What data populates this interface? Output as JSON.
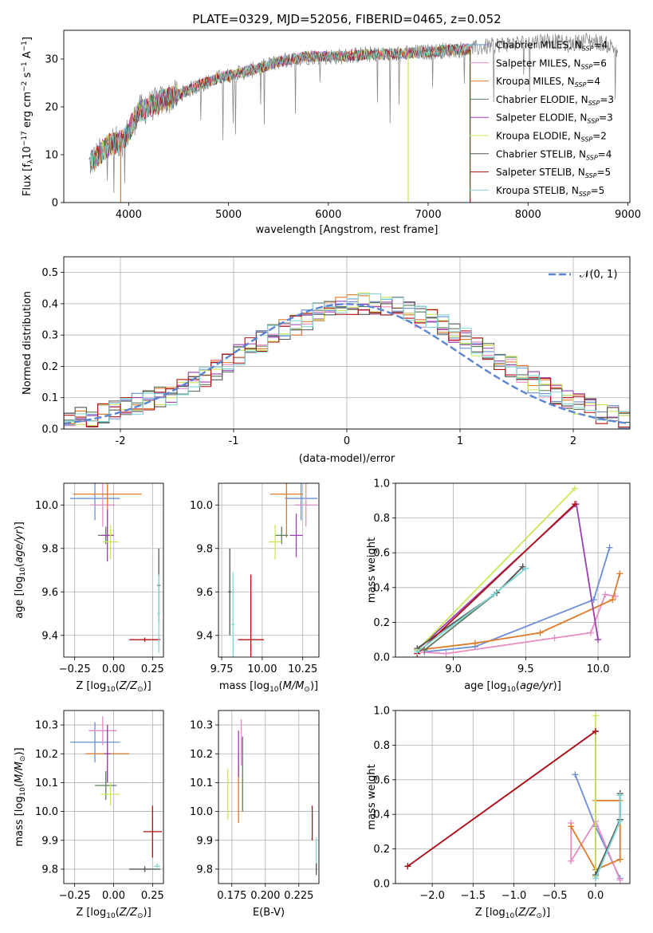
{
  "figure": {
    "title": "PLATE=0329, MJD=52056, FIBERID=0465, z=0.052"
  },
  "colors": {
    "Chabrier MILES": "#6a8fd8",
    "Salpeter MILES": "#e88bc4",
    "Kroupa MILES": "#e07a28",
    "Chabrier ELODIE": "#5e7a5e",
    "Salpeter ELODIE": "#9b3fb5",
    "Kroupa ELODIE": "#c8e85a",
    "Chabrier STELIB": "#555555",
    "Salpeter STELIB": "#b01010",
    "Kroupa STELIB": "#7fd6d6"
  },
  "chart_data": [
    {
      "id": "spectrum",
      "type": "line",
      "title": "PLATE=0329, MJD=52056, FIBERID=0465, z=0.052",
      "xlabel": "wavelength [Angstrom, rest frame]",
      "ylabel": "Flux [f_λ10^-17 erg cm^-2 s^-1 A^-1]",
      "xlim": [
        3350,
        9020
      ],
      "ylim": [
        0,
        36
      ],
      "xticks": [
        4000,
        5000,
        6000,
        7000,
        8000,
        9000
      ],
      "yticks": [
        0,
        10,
        20,
        30
      ],
      "grid": false,
      "legend_position": "top-right",
      "spectrum_trend": {
        "x": [
          3600,
          3800,
          3950,
          4100,
          4300,
          4500,
          4700,
          4900,
          5100,
          5300,
          5500,
          5800,
          6100,
          6400,
          6700,
          7000,
          7300,
          7420
        ],
        "y": [
          8,
          12,
          13,
          19,
          21,
          22.5,
          24.5,
          26,
          27,
          28,
          29.5,
          30.5,
          30.5,
          31,
          31,
          31.5,
          32,
          32
        ]
      },
      "data_only_tail": {
        "x": [
          7420,
          7700,
          8000,
          8200,
          8400,
          8600,
          8800,
          8900
        ],
        "y": [
          32,
          33,
          33.5,
          34,
          33,
          34,
          33,
          32
        ]
      },
      "series": [
        {
          "name": "Chabrier MILES, N_SSP=4",
          "label_main": "Chabrier MILES, N",
          "label_sub": "SSP",
          "label_tail": "=4",
          "color": "Chabrier MILES"
        },
        {
          "name": "Salpeter MILES, N_SSP=6",
          "label_main": "Salpeter MILES, N",
          "label_sub": "SSP",
          "label_tail": "=6",
          "color": "Salpeter MILES"
        },
        {
          "name": "Kroupa MILES, N_SSP=4",
          "label_main": "Kroupa MILES, N",
          "label_sub": "SSP",
          "label_tail": "=4",
          "color": "Kroupa MILES"
        },
        {
          "name": "Chabrier ELODIE, N_SSP=3",
          "label_main": "Chabrier ELODIE, N",
          "label_sub": "SSP",
          "label_tail": "=3",
          "color": "Chabrier ELODIE"
        },
        {
          "name": "Salpeter ELODIE, N_SSP=3",
          "label_main": "Salpeter ELODIE, N",
          "label_sub": "SSP",
          "label_tail": "=3",
          "color": "Salpeter ELODIE"
        },
        {
          "name": "Kroupa ELODIE, N_SSP=2",
          "label_main": "Kroupa ELODIE, N",
          "label_sub": "SSP",
          "label_tail": "=2",
          "color": "Kroupa ELODIE"
        },
        {
          "name": "Chabrier STELIB, N_SSP=4",
          "label_main": "Chabrier STELIB, N",
          "label_sub": "SSP",
          "label_tail": "=4",
          "color": "Chabrier STELIB"
        },
        {
          "name": "Salpeter STELIB, N_SSP=5",
          "label_main": "Salpeter STELIB, N",
          "label_sub": "SSP",
          "label_tail": "=5",
          "color": "Salpeter STELIB"
        },
        {
          "name": "Kroupa STELIB, N_SSP=5",
          "label_main": "Kroupa STELIB, N",
          "label_sub": "SSP",
          "label_tail": "=5",
          "color": "Kroupa STELIB"
        }
      ]
    },
    {
      "id": "residuals",
      "type": "area",
      "xlabel": "(data-model)/error",
      "ylabel": "Normed distribution",
      "xlim": [
        -2.5,
        2.5
      ],
      "ylim": [
        0,
        0.55
      ],
      "xticks": [
        -2,
        -1,
        0,
        1,
        2
      ],
      "yticks": [
        0.0,
        0.1,
        0.2,
        0.3,
        0.4,
        0.5
      ],
      "grid": true,
      "legend_position": "top-right",
      "reference": {
        "name": "N(0,1)",
        "label": "𝒩(0, 1)",
        "mean": 0,
        "sigma": 1,
        "color": "#5b84d4"
      },
      "bin_edges_start": -2.5,
      "bin_width": 0.1,
      "envelope": [
        0.03,
        0.035,
        0.04,
        0.05,
        0.06,
        0.07,
        0.08,
        0.09,
        0.1,
        0.11,
        0.13,
        0.15,
        0.17,
        0.19,
        0.21,
        0.24,
        0.26,
        0.28,
        0.3,
        0.32,
        0.33,
        0.35,
        0.37,
        0.38,
        0.39,
        0.4,
        0.4,
        0.4,
        0.395,
        0.39,
        0.38,
        0.36,
        0.35,
        0.33,
        0.31,
        0.29,
        0.26,
        0.24,
        0.22,
        0.2,
        0.18,
        0.15,
        0.13,
        0.11,
        0.1,
        0.08,
        0.07,
        0.05,
        0.04,
        0.03
      ],
      "series_colors": [
        "Chabrier MILES",
        "Salpeter MILES",
        "Kroupa MILES",
        "Chabrier ELODIE",
        "Salpeter ELODIE",
        "Kroupa ELODIE",
        "Chabrier STELIB",
        "Salpeter STELIB",
        "Kroupa STELIB"
      ]
    },
    {
      "id": "age_vs_Z",
      "type": "scatter",
      "xlabel": "Z [log10(Z/Z⊙)]",
      "ylabel": "age [log10(age/yr)]",
      "xlim": [
        -0.32,
        0.32
      ],
      "ylim": [
        9.3,
        10.1
      ],
      "xticks": [
        -0.25,
        0.0,
        0.25
      ],
      "xticklabels": [
        "−0.25",
        "0.00",
        "0.25"
      ],
      "yticks": [
        9.4,
        9.6,
        9.8,
        10.0
      ],
      "grid": true,
      "points": [
        {
          "s": "Chabrier MILES",
          "x": -0.12,
          "y": 10.03,
          "xerr": 0.16,
          "yerr": 0.1
        },
        {
          "s": "Salpeter MILES",
          "x": -0.07,
          "y": 10.0,
          "xerr": 0.08,
          "yerr": 0.1
        },
        {
          "s": "Kroupa MILES",
          "x": -0.04,
          "y": 10.05,
          "xerr": 0.22,
          "yerr": 0.2
        },
        {
          "s": "Chabrier ELODIE",
          "x": -0.05,
          "y": 9.86,
          "xerr": 0.05,
          "yerr": 0.04
        },
        {
          "s": "Salpeter ELODIE",
          "x": -0.04,
          "y": 9.86,
          "xerr": 0.04,
          "yerr": 0.12
        },
        {
          "s": "Kroupa ELODIE",
          "x": -0.02,
          "y": 9.83,
          "xerr": 0.05,
          "yerr": 0.08
        },
        {
          "s": "Chabrier STELIB",
          "x": 0.29,
          "y": 9.63,
          "xerr": 0.01,
          "yerr": 0.17
        },
        {
          "s": "Salpeter STELIB",
          "x": 0.2,
          "y": 9.38,
          "xerr": 0.1,
          "yerr": 0.01
        },
        {
          "s": "Kroupa STELIB",
          "x": 0.29,
          "y": 9.5,
          "xerr": 0.01,
          "yerr": 0.18
        }
      ]
    },
    {
      "id": "age_vs_mass",
      "type": "scatter",
      "xlabel": "mass [log10(M/M⊙)]",
      "ylabel": "",
      "xlim": [
        9.73,
        10.35
      ],
      "ylim": [
        9.3,
        10.1
      ],
      "xticks": [
        9.75,
        10.0,
        10.25
      ],
      "xticklabels": [
        "9.75",
        "10.00",
        "10.25"
      ],
      "yticks": [
        9.4,
        9.6,
        9.8,
        10.0
      ],
      "grid": true,
      "points": [
        {
          "s": "Chabrier MILES",
          "x": 10.24,
          "y": 10.03,
          "xerr": 0.1,
          "yerr": 0.1
        },
        {
          "s": "Salpeter MILES",
          "x": 10.27,
          "y": 10.0,
          "xerr": 0.07,
          "yerr": 0.1
        },
        {
          "s": "Kroupa MILES",
          "x": 10.15,
          "y": 10.05,
          "xerr": 0.1,
          "yerr": 0.2
        },
        {
          "s": "Chabrier ELODIE",
          "x": 10.12,
          "y": 9.86,
          "xerr": 0.04,
          "yerr": 0.04
        },
        {
          "s": "Salpeter ELODIE",
          "x": 10.21,
          "y": 9.86,
          "xerr": 0.04,
          "yerr": 0.1
        },
        {
          "s": "Kroupa ELODIE",
          "x": 10.08,
          "y": 9.83,
          "xerr": 0.04,
          "yerr": 0.08
        },
        {
          "s": "Chabrier STELIB",
          "x": 9.8,
          "y": 9.6,
          "xerr": 0.01,
          "yerr": 0.2
        },
        {
          "s": "Salpeter STELIB",
          "x": 9.93,
          "y": 9.38,
          "xerr": 0.08,
          "yerr": 0.3
        },
        {
          "s": "Kroupa STELIB",
          "x": 9.82,
          "y": 9.45,
          "xerr": 0.01,
          "yerr": 0.24
        }
      ]
    },
    {
      "id": "massweight_vs_age",
      "type": "line",
      "xlabel": "age [log10(age/yr)]",
      "ylabel": "mass weight",
      "xlim": [
        8.6,
        10.22
      ],
      "ylim": [
        0.0,
        1.0
      ],
      "xticks": [
        9.0,
        9.5,
        10.0
      ],
      "xticklabels": [
        "9.0",
        "9.5",
        "10.0"
      ],
      "yticks": [
        0.0,
        0.2,
        0.4,
        0.6,
        0.8,
        1.0
      ],
      "grid": true,
      "series": [
        {
          "s": "Chabrier MILES",
          "x": [
            8.8,
            9.15,
            9.97,
            10.08
          ],
          "y": [
            0.03,
            0.06,
            0.33,
            0.63
          ]
        },
        {
          "s": "Salpeter MILES",
          "x": [
            8.75,
            8.95,
            9.7,
            9.95,
            10.05,
            10.12
          ],
          "y": [
            0.03,
            0.02,
            0.11,
            0.14,
            0.36,
            0.35
          ]
        },
        {
          "s": "Kroupa MILES",
          "x": [
            8.75,
            9.15,
            9.6,
            10.1,
            10.15
          ],
          "y": [
            0.04,
            0.08,
            0.14,
            0.33,
            0.48
          ]
        },
        {
          "s": "Chabrier ELODIE",
          "x": [
            8.8,
            9.3,
            9.48
          ],
          "y": [
            0.04,
            0.37,
            0.52
          ]
        },
        {
          "s": "Salpeter ELODIE",
          "x": [
            8.75,
            9.85,
            10.0
          ],
          "y": [
            0.04,
            0.88,
            0.1
          ]
        },
        {
          "s": "Kroupa ELODIE",
          "x": [
            8.75,
            9.84
          ],
          "y": [
            0.04,
            0.97
          ]
        },
        {
          "s": "Chabrier STELIB",
          "x": [
            8.75,
            9.3,
            9.48
          ],
          "y": [
            0.05,
            0.37,
            0.52
          ]
        },
        {
          "s": "Salpeter STELIB",
          "x": [
            8.75,
            9.84
          ],
          "y": [
            0.02,
            0.88
          ]
        },
        {
          "s": "Kroupa STELIB",
          "x": [
            8.75,
            9.28,
            9.5
          ],
          "y": [
            0.03,
            0.36,
            0.51
          ]
        }
      ]
    },
    {
      "id": "mass_vs_Z",
      "type": "scatter",
      "xlabel": "Z [log10(Z/Z⊙)]",
      "ylabel": "mass [log10(M/M⊙)]",
      "xlim": [
        -0.32,
        0.32
      ],
      "ylim": [
        9.75,
        10.35
      ],
      "xticks": [
        -0.25,
        0.0,
        0.25
      ],
      "xticklabels": [
        "−0.25",
        "0.00",
        "0.25"
      ],
      "yticks": [
        9.8,
        9.9,
        10.0,
        10.1,
        10.2,
        10.3
      ],
      "grid": true,
      "points": [
        {
          "s": "Chabrier MILES",
          "x": -0.12,
          "y": 10.24,
          "xerr": 0.16,
          "yerr": 0.07
        },
        {
          "s": "Salpeter MILES",
          "x": -0.07,
          "y": 10.28,
          "xerr": 0.09,
          "yerr": 0.05
        },
        {
          "s": "Kroupa MILES",
          "x": -0.04,
          "y": 10.2,
          "xerr": 0.14,
          "yerr": 0.1
        },
        {
          "s": "Chabrier ELODIE",
          "x": -0.05,
          "y": 10.09,
          "xerr": 0.07,
          "yerr": 0.05
        },
        {
          "s": "Salpeter ELODIE",
          "x": -0.04,
          "y": 10.2,
          "xerr": 0.02,
          "yerr": 0.1
        },
        {
          "s": "Kroupa ELODIE",
          "x": -0.02,
          "y": 10.06,
          "xerr": 0.06,
          "yerr": 0.04
        },
        {
          "s": "Chabrier STELIB",
          "x": 0.2,
          "y": 9.8,
          "xerr": 0.1,
          "yerr": 0.01
        },
        {
          "s": "Salpeter STELIB",
          "x": 0.25,
          "y": 9.93,
          "xerr": 0.06,
          "yerr": 0.09
        },
        {
          "s": "Kroupa STELIB",
          "x": 0.28,
          "y": 9.81,
          "xerr": 0.02,
          "yerr": 0.01
        }
      ]
    },
    {
      "id": "mass_vs_EBV",
      "type": "scatter",
      "xlabel": "E(B-V)",
      "ylabel": "",
      "xlim": [
        0.165,
        0.24
      ],
      "ylim": [
        9.75,
        10.35
      ],
      "xticks": [
        0.175,
        0.2,
        0.225
      ],
      "xticklabels": [
        "0.175",
        "0.200",
        "0.225"
      ],
      "yticks": [
        9.8,
        9.9,
        10.0,
        10.1,
        10.2,
        10.3
      ],
      "grid": true,
      "points": [
        {
          "s": "Salpeter MILES",
          "x": 0.182,
          "y": 10.24,
          "xerr": 0,
          "yerr": 0.08
        },
        {
          "s": "Kroupa MILES",
          "x": 0.18,
          "y": 10.08,
          "xerr": 0,
          "yerr": 0.12
        },
        {
          "s": "Salpeter ELODIE",
          "x": 0.18,
          "y": 10.2,
          "xerr": 0,
          "yerr": 0.08
        },
        {
          "s": "Kroupa ELODIE",
          "x": 0.172,
          "y": 10.06,
          "xerr": 0,
          "yerr": 0.09
        },
        {
          "s": "Chabrier ELODIE",
          "x": 0.183,
          "y": 10.13,
          "xerr": 0,
          "yerr": 0.13
        },
        {
          "s": "Salpeter STELIB",
          "x": 0.235,
          "y": 9.96,
          "xerr": 0,
          "yerr": 0.06
        },
        {
          "s": "Kroupa STELIB",
          "x": 0.238,
          "y": 9.85,
          "xerr": 0,
          "yerr": 0.06
        },
        {
          "s": "Chabrier STELIB",
          "x": 0.238,
          "y": 9.8,
          "xerr": 0,
          "yerr": 0.02
        }
      ]
    },
    {
      "id": "massweight_vs_Z",
      "type": "line",
      "xlabel": "Z [log10(Z/Z⊙)]",
      "ylabel": "mass weight",
      "xlim": [
        -2.45,
        0.42
      ],
      "ylim": [
        0.0,
        1.0
      ],
      "xticks": [
        -2.0,
        -1.5,
        -1.0,
        -0.5,
        0.0
      ],
      "xticklabels": [
        "−2.0",
        "−1.5",
        "−1.0",
        "−0.5",
        "0.0"
      ],
      "yticks": [
        0.0,
        0.2,
        0.4,
        0.6,
        0.8,
        1.0
      ],
      "grid": true,
      "series": [
        {
          "s": "Chabrier MILES",
          "x": [
            -0.25,
            0.0,
            0.3
          ],
          "y": [
            0.63,
            0.33,
            0.03
          ]
        },
        {
          "s": "Salpeter MILES",
          "x": [
            -0.3,
            -0.3,
            0.0,
            0.3
          ],
          "y": [
            0.35,
            0.13,
            0.36,
            0.02
          ]
        },
        {
          "s": "Kroupa MILES",
          "x": [
            -0.3,
            0.0,
            0.3,
            0.3,
            0.0
          ],
          "y": [
            0.33,
            0.08,
            0.14,
            0.48,
            0.48
          ]
        },
        {
          "s": "Chabrier ELODIE",
          "x": [
            0.0,
            0.3,
            0.3
          ],
          "y": [
            0.04,
            0.37,
            0.52
          ]
        },
        {
          "s": "Salpeter ELODIE",
          "x": [
            -2.3,
            0.0,
            0.0
          ],
          "y": [
            0.1,
            0.88,
            0.04
          ]
        },
        {
          "s": "Kroupa ELODIE",
          "x": [
            0.0,
            0.0
          ],
          "y": [
            0.04,
            0.97
          ]
        },
        {
          "s": "Chabrier STELIB",
          "x": [
            0.0,
            0.3,
            0.3
          ],
          "y": [
            0.05,
            0.37,
            0.52
          ]
        },
        {
          "s": "Salpeter STELIB",
          "x": [
            -2.3,
            0.0
          ],
          "y": [
            0.1,
            0.88
          ]
        },
        {
          "s": "Kroupa STELIB",
          "x": [
            0.0,
            0.3,
            0.3
          ],
          "y": [
            0.03,
            0.36,
            0.51
          ]
        }
      ]
    }
  ]
}
